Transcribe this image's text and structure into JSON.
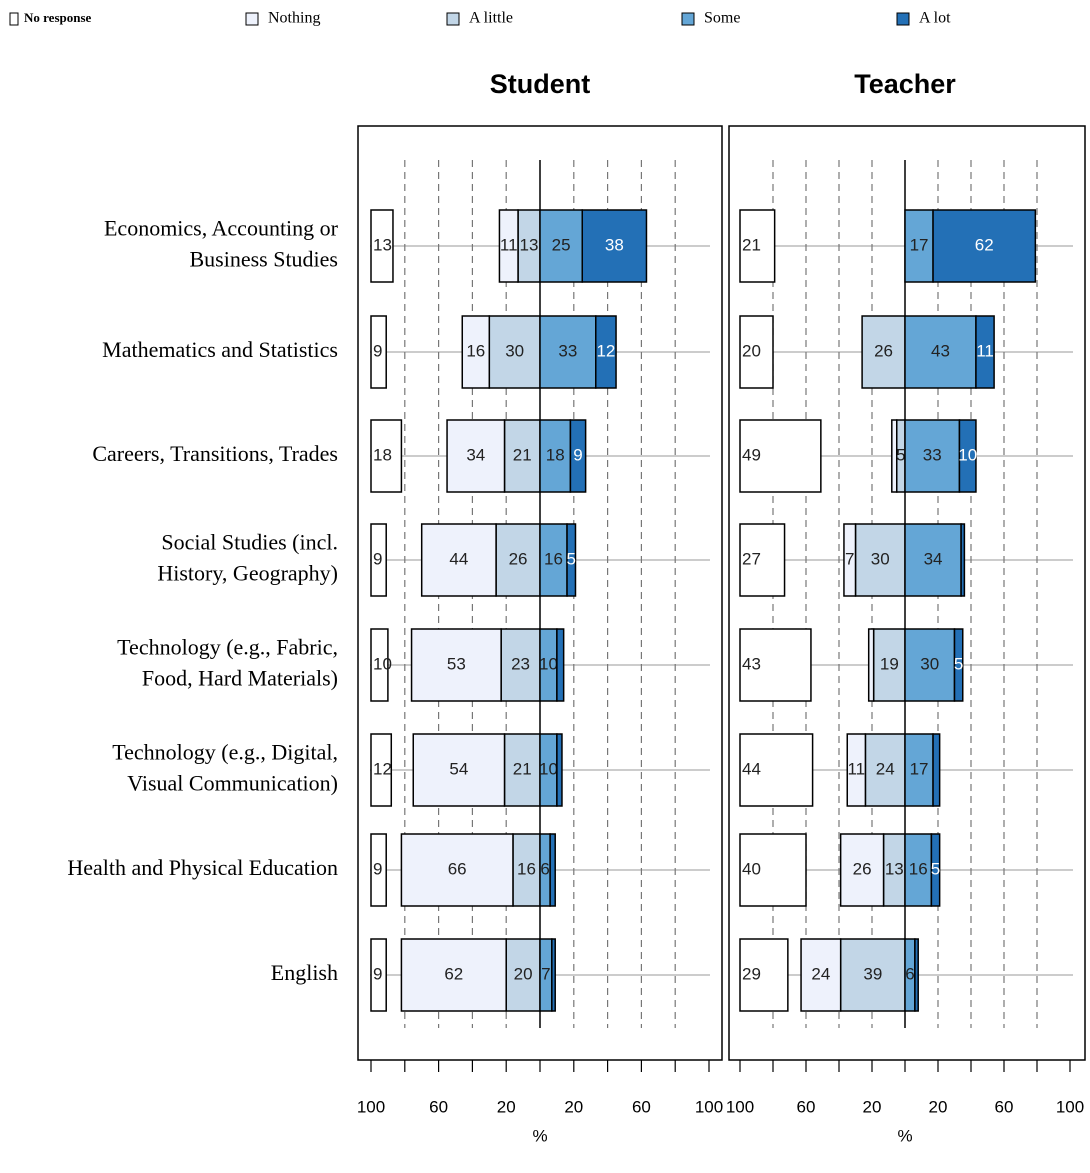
{
  "chart_data": {
    "type": "diverging_bar",
    "categories": [
      "Economics, Accounting or\nBusiness Studies",
      "Mathematics and Statistics",
      "Careers, Transitions, Trades",
      "Social Studies (incl.\nHistory, Geography)",
      "Technology (e.g., Fabric,\nFood, Hard Materials)",
      "Technology (e.g., Digital,\nVisual Communication)",
      "Health and Physical Education",
      "English"
    ],
    "series": [
      {
        "name": "No response",
        "color": "#ffffff"
      },
      {
        "name": "Nothing",
        "color": "#eef2fc"
      },
      {
        "name": "A little",
        "color": "#c2d6e7"
      },
      {
        "name": "Some",
        "color": "#64a6d6"
      },
      {
        "name": "A lot",
        "color": "#2370b6"
      }
    ],
    "xlim": [
      -100,
      100
    ],
    "xticks": [
      {
        "value": -100,
        "label": "100"
      },
      {
        "value": -60,
        "label": "60"
      },
      {
        "value": -20,
        "label": "20"
      },
      {
        "value": 20,
        "label": "20"
      },
      {
        "value": 60,
        "label": "60"
      },
      {
        "value": 100,
        "label": "100"
      }
    ],
    "minor_xticks": [
      -80,
      -40,
      0,
      40,
      80
    ],
    "panels": [
      {
        "title": "Student",
        "xlabel": "%",
        "values": [
          [
            13,
            9,
            18,
            9,
            10,
            12,
            9,
            9
          ],
          [
            11,
            16,
            34,
            44,
            53,
            54,
            66,
            62
          ],
          [
            13,
            30,
            21,
            26,
            23,
            21,
            16,
            20
          ],
          [
            25,
            33,
            18,
            16,
            10,
            10,
            6,
            7
          ],
          [
            38,
            12,
            9,
            5,
            4,
            3,
            3,
            2
          ]
        ]
      },
      {
        "title": "Teacher",
        "xlabel": "%",
        "values": [
          [
            21,
            20,
            49,
            27,
            43,
            44,
            40,
            29
          ],
          [
            0,
            0,
            3,
            7,
            3,
            11,
            26,
            24
          ],
          [
            0,
            26,
            5,
            30,
            19,
            24,
            13,
            39
          ],
          [
            17,
            43,
            33,
            34,
            30,
            17,
            16,
            6
          ],
          [
            62,
            11,
            10,
            2,
            5,
            4,
            5,
            2
          ]
        ]
      }
    ]
  }
}
